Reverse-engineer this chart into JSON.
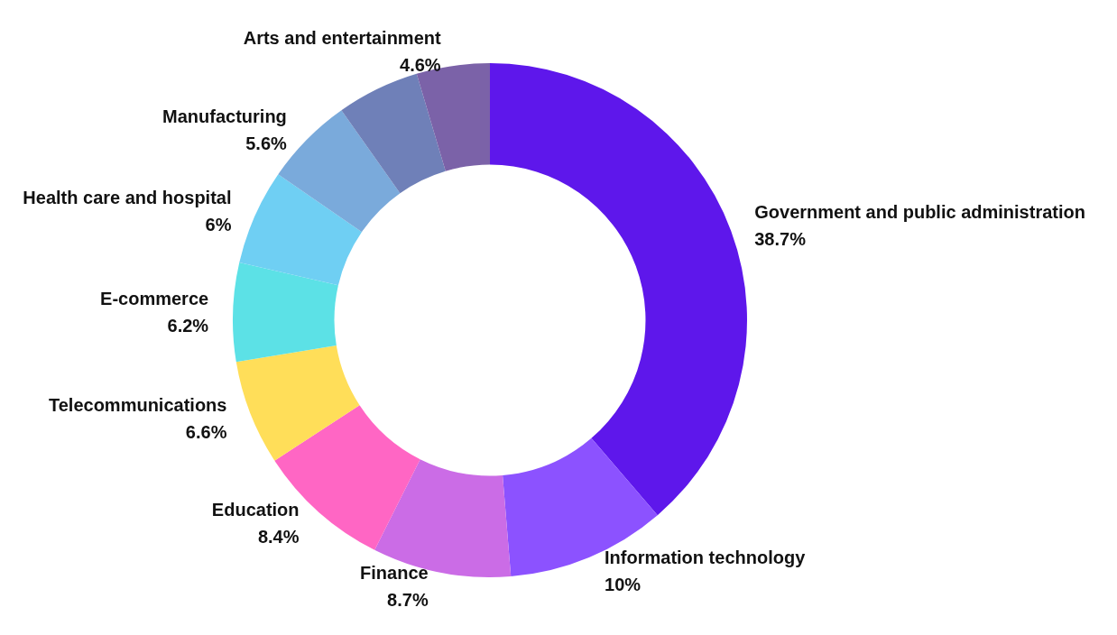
{
  "chart_data": {
    "type": "donut",
    "categories": [
      "Government and public administration",
      "Information technology",
      "Finance",
      "Education",
      "Telecommunications",
      "E-commerce",
      "Health care and hospital",
      "Manufacturing",
      null,
      "Arts and entertainment"
    ],
    "values": [
      38.7,
      10,
      8.7,
      8.4,
      6.6,
      6.2,
      6,
      5.6,
      5.2,
      4.6
    ],
    "value_labels": [
      "38.7%",
      "10%",
      "8.7%",
      "8.4%",
      "6.6%",
      "6.2%",
      "6%",
      "5.6%",
      null,
      "4.6%"
    ],
    "colors": [
      "#5e17eb",
      "#8c52ff",
      "#cb6ce6",
      "#ff66c4",
      "#ffde59",
      "#5ce1e6",
      "#6fcff3",
      "#7aaadb",
      "#6f80b8",
      "#7b62a8"
    ]
  }
}
